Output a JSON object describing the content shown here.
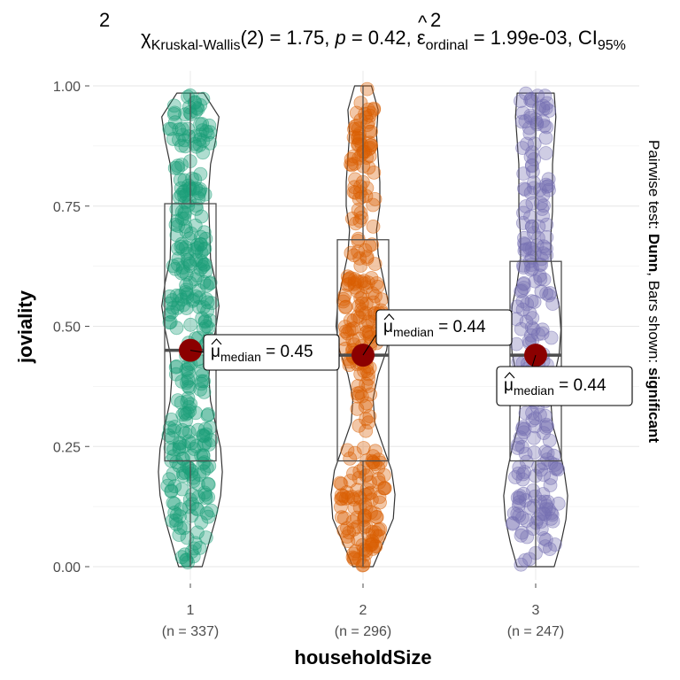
{
  "chart_data": {
    "type": "violin-box-scatter",
    "title": {
      "stat_symbol": "χ",
      "stat_sup": "2",
      "stat_sub": "Kruskal-Wallis",
      "df": "(2)",
      "stat_value": " = 1.75, ",
      "p_symbol": "p",
      "p_value": " = 0.42, ",
      "effect_symbol": "ε",
      "effect_hat": "^",
      "effect_sup": "2",
      "effect_sub": "ordinal",
      "effect_value": " = 1.99e-03, CI",
      "ci_sub": "95%"
    },
    "subtitle_right": {
      "prefix": "Pairwise test: ",
      "test_name": "Dunn",
      "middle": ", Bars shown: ",
      "shown": "significant"
    },
    "xlabel": "householdSize",
    "ylabel": "joviality",
    "ylim": [
      0,
      1
    ],
    "y_ticks": [
      0,
      0.25,
      0.5,
      0.75,
      1
    ],
    "y_tick_labels": [
      "0.00",
      "0.25",
      "0.50",
      "0.75",
      "1.00"
    ],
    "grid": true,
    "median_symbol": "μ",
    "median_sub": "median",
    "groups": [
      {
        "category": "1",
        "n_label": "(n = 337)",
        "n": 337,
        "color": "#1B9E77",
        "min": 0.0,
        "q1": 0.22,
        "median": 0.45,
        "q3": 0.755,
        "max": 0.985,
        "median_label": " = 0.45",
        "violin_widths": [
          0.35,
          0.55,
          0.75,
          0.9,
          0.95,
          0.9,
          0.75,
          0.6,
          0.55,
          0.6,
          0.75,
          0.85,
          0.75,
          0.6,
          0.58,
          0.55,
          0.55,
          0.6,
          0.75,
          0.85,
          0.4
        ]
      },
      {
        "category": "2",
        "n_label": "(n = 296)",
        "n": 296,
        "color": "#D95F02",
        "min": 0.0,
        "q1": 0.22,
        "median": 0.44,
        "q3": 0.68,
        "max": 1.0,
        "median_label": " = 0.44",
        "violin_widths": [
          0.3,
          0.6,
          0.9,
          0.95,
          0.85,
          0.6,
          0.35,
          0.3,
          0.45,
          0.7,
          0.8,
          0.75,
          0.6,
          0.45,
          0.4,
          0.5,
          0.5,
          0.45,
          0.4,
          0.45,
          0.25
        ]
      },
      {
        "category": "3",
        "n_label": "(n = 247)",
        "n": 247,
        "color": "#7570B3",
        "min": 0.0,
        "q1": 0.22,
        "median": 0.44,
        "q3": 0.635,
        "max": 0.985,
        "median_label": " = 0.44",
        "violin_widths": [
          0.55,
          0.75,
          0.9,
          0.95,
          0.85,
          0.7,
          0.5,
          0.45,
          0.55,
          0.7,
          0.75,
          0.7,
          0.55,
          0.45,
          0.45,
          0.5,
          0.5,
          0.5,
          0.55,
          0.6,
          0.55
        ]
      }
    ],
    "median_point_color": "#8B0000",
    "point_alpha": 0.35
  }
}
